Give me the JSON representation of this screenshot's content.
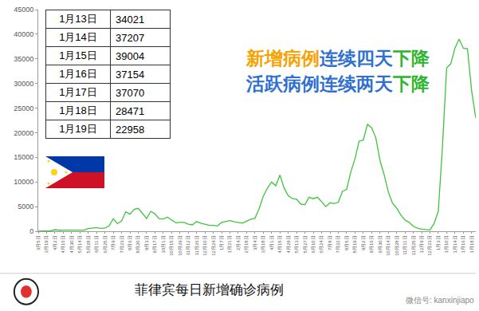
{
  "chart_data": {
    "type": "line",
    "title": "菲律宾每日新增确诊病例",
    "categories": [
      "3月5日",
      null,
      "3月19日",
      null,
      "4月2日",
      null,
      "4月16日",
      null,
      "4月30日",
      null,
      "5月14日",
      null,
      "5月28日",
      null,
      "6月11日",
      null,
      "6月25日",
      null,
      "7月9日",
      null,
      "7月23日",
      null,
      "8月6日",
      null,
      "8月20日",
      null,
      "9月3日",
      null,
      "9月17日",
      null,
      "10月1日",
      null,
      "10月15日",
      null,
      "10月29日",
      null,
      "11月12日",
      null,
      "11月26日",
      null,
      "12月10日",
      null,
      "12月24日",
      null,
      "1月7日",
      null,
      "1月21日",
      null,
      "2月4日",
      null,
      "2月18日",
      null,
      "3月4日",
      null,
      "3月18日",
      null,
      "4月1日",
      null,
      "4月15日",
      null,
      "4月29日",
      null,
      "5月13日",
      null,
      "5月27日",
      null,
      "6月10日",
      null,
      "6月24日",
      null,
      "7月8日",
      null,
      "7月22日",
      null,
      "8月5日",
      null,
      "8月19日",
      null,
      "9月2日",
      null,
      "9月16日",
      null,
      "9月30日",
      null,
      "10月14日",
      null,
      "10月28日",
      null,
      "11月11日",
      null,
      "11月25日",
      null,
      "12月9日",
      null,
      "12月23日",
      null,
      "1月3日",
      null,
      "1月10日",
      null,
      "1月14日",
      null,
      "1月16日",
      null,
      "1月18日",
      null
    ],
    "values": [
      3,
      3,
      15,
      84,
      322,
      206,
      220,
      211,
      276,
      199,
      215,
      213,
      539,
      634,
      740,
      590,
      653,
      1080,
      2539,
      1543,
      2110,
      3950,
      3462,
      4444,
      4650,
      3637,
      2562,
      4040,
      3550,
      2540,
      2500,
      2870,
      2260,
      1730,
      1790,
      1800,
      1450,
      1300,
      1970,
      1630,
      1440,
      1180,
      1190,
      1080,
      1800,
      2000,
      2150,
      1910,
      1720,
      1640,
      2050,
      2450,
      2620,
      4580,
      7100,
      8770,
      10000,
      9220,
      11400,
      8760,
      7200,
      6640,
      6500,
      5500,
      5400,
      6900,
      6600,
      6900,
      6000,
      5000,
      5800,
      5600,
      5900,
      8100,
      8500,
      12000,
      14700,
      18300,
      18500,
      21700,
      21000,
      19000,
      14400,
      11500,
      8000,
      5700,
      4700,
      3300,
      2300,
      1800,
      1000,
      640,
      420,
      300,
      260,
      1600,
      4084,
      17220,
      33169,
      34021,
      37207,
      39004,
      37154,
      37070,
      28471,
      22958
    ],
    "color": "#3fc43f",
    "ylim": [
      0,
      45000
    ],
    "yticks": [
      0,
      5000,
      10000,
      15000,
      20000,
      25000,
      30000,
      35000,
      40000,
      45000
    ],
    "grid": false,
    "annotations": [
      [
        {
          "text": "新增病例",
          "color": "#f5a300"
        },
        {
          "text": "连续四天",
          "color": "#2f6fd0"
        },
        {
          "text": "下降",
          "color": "#2fb52f"
        }
      ],
      [
        {
          "text": "活跃病例",
          "color": "#2f6fd0"
        },
        {
          "text": "连续两天",
          "color": "#2f6fd0"
        },
        {
          "text": "下降",
          "color": "#2fb52f"
        }
      ]
    ],
    "table": [
      [
        "1月13日",
        34021
      ],
      [
        "1月14日",
        37207
      ],
      [
        "1月15日",
        39004
      ],
      [
        "1月16日",
        37154
      ],
      [
        "1月17日",
        37070
      ],
      [
        "1月18日",
        28471
      ],
      [
        "1月19日",
        22958
      ]
    ],
    "watermark": "微信号: kanxinjiapo"
  }
}
